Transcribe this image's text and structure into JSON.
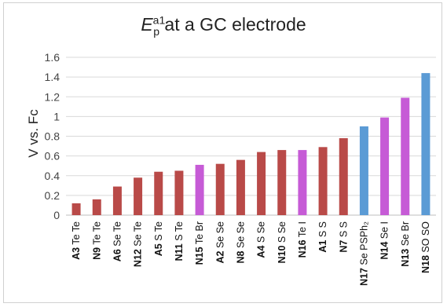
{
  "chart_data": {
    "type": "bar",
    "title": {
      "symbol": "E",
      "superscript": "a1",
      "subscript": "p",
      "rest": "at a GC electrode"
    },
    "ylabel": "V vs. Fc",
    "xlabel": "",
    "ylim": [
      0,
      1.6
    ],
    "ytick_step": 0.2,
    "yticks": [
      "0",
      "0.2",
      "0.4",
      "0.6",
      "0.8",
      "1",
      "1.2",
      "1.4",
      "1.6"
    ],
    "grid": true,
    "legend": "none",
    "colors": {
      "red": "#b94a48",
      "purple": "#c65bd6",
      "blue": "#5b9bd5",
      "grid": "#d9d9d9"
    },
    "categories": [
      {
        "id": "A3",
        "suffix": "Te Te",
        "value": 0.12,
        "color": "red"
      },
      {
        "id": "N9",
        "suffix": "Te Te",
        "value": 0.16,
        "color": "red"
      },
      {
        "id": "A6",
        "suffix": "Se Te",
        "value": 0.29,
        "color": "red"
      },
      {
        "id": "N12",
        "suffix": "Se Te",
        "value": 0.38,
        "color": "red"
      },
      {
        "id": "A5",
        "suffix": "S Te",
        "value": 0.44,
        "color": "red"
      },
      {
        "id": "N11",
        "suffix": "S Te",
        "value": 0.45,
        "color": "red"
      },
      {
        "id": "N15",
        "suffix": "Te Br",
        "value": 0.51,
        "color": "purple"
      },
      {
        "id": "A2",
        "suffix": "Se Se",
        "value": 0.52,
        "color": "red"
      },
      {
        "id": "N8",
        "suffix": "Se Se",
        "value": 0.56,
        "color": "red"
      },
      {
        "id": "A4",
        "suffix": "S Se",
        "value": 0.64,
        "color": "red"
      },
      {
        "id": "N10",
        "suffix": "S Se",
        "value": 0.66,
        "color": "red"
      },
      {
        "id": "N16",
        "suffix": "Te I",
        "value": 0.66,
        "color": "purple"
      },
      {
        "id": "A1",
        "suffix": "S S",
        "value": 0.69,
        "color": "red"
      },
      {
        "id": "N7",
        "suffix": "S S",
        "value": 0.78,
        "color": "red"
      },
      {
        "id": "N17",
        "suffix": "Se PSPh₂",
        "value": 0.9,
        "color": "blue"
      },
      {
        "id": "N14",
        "suffix": "Se I",
        "value": 0.99,
        "color": "purple"
      },
      {
        "id": "N13",
        "suffix": "Se Br",
        "value": 1.19,
        "color": "purple"
      },
      {
        "id": "N18",
        "suffix": "SO SO",
        "value": 1.44,
        "color": "blue"
      }
    ]
  }
}
